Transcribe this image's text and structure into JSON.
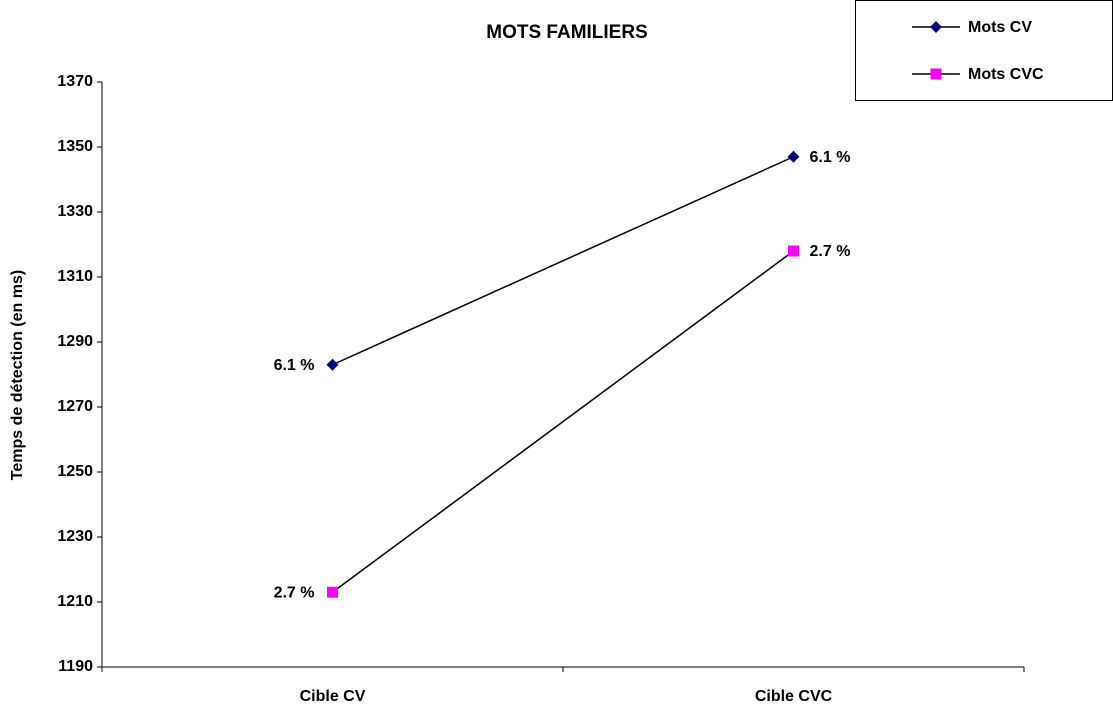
{
  "chart_data": {
    "type": "line",
    "title": "MOTS FAMILIERS",
    "y_label": "Temps de détection (en ms)",
    "categories": [
      "Cible CV",
      "Cible CVC"
    ],
    "series": [
      {
        "name": "Mots CV",
        "color": "#000080",
        "line_color": "#000000",
        "marker": "diamond",
        "values": [
          1283,
          1347
        ],
        "annotations": [
          "6.1 %",
          "6.1 %"
        ]
      },
      {
        "name": "Mots CVC",
        "color": "#ff00ff",
        "line_color": "#000000",
        "marker": "square",
        "values": [
          1213,
          1318
        ],
        "annotations": [
          "2.7 %",
          "2.7 %"
        ]
      }
    ],
    "ylim": [
      1190,
      1370
    ],
    "yticks": [
      1190,
      1210,
      1230,
      1250,
      1270,
      1290,
      1310,
      1330,
      1350,
      1370
    ],
    "grid": false,
    "legend": "top-right"
  }
}
